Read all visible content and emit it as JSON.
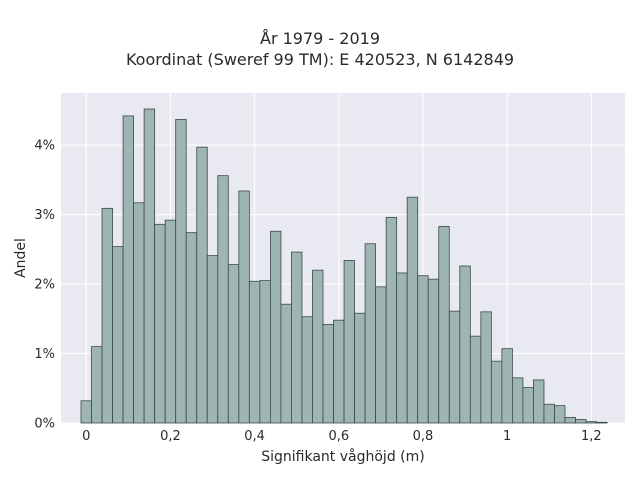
{
  "chart_data": {
    "type": "bar",
    "title_line1": "År 1979 - 2019",
    "title_line2": "Koordinat (Sweref 99 TM): E 420523, N 6142849",
    "xlabel": "Signifikant våghöjd (m)",
    "ylabel": "Andel",
    "xlim": [
      -0.06,
      1.28
    ],
    "ylim": [
      0,
      4.75
    ],
    "bin_width": 0.025,
    "bin_start": -0.0125,
    "x_ticks": [
      0,
      0.2,
      0.4,
      0.6,
      0.8,
      1,
      1.2
    ],
    "x_tick_labels": [
      "0",
      "0,2",
      "0,4",
      "0,6",
      "0,8",
      "1",
      "1,2"
    ],
    "y_ticks": [
      0,
      1,
      2,
      3,
      4
    ],
    "y_tick_labels": [
      "0%",
      "1%",
      "2%",
      "3%",
      "4%"
    ],
    "values": [
      0.32,
      1.1,
      3.09,
      2.54,
      4.42,
      3.17,
      4.52,
      2.86,
      2.92,
      4.37,
      2.74,
      3.97,
      2.41,
      3.56,
      2.28,
      3.34,
      2.04,
      2.05,
      2.76,
      1.71,
      2.46,
      1.53,
      2.2,
      1.42,
      1.48,
      2.34,
      1.58,
      2.58,
      1.96,
      2.96,
      2.16,
      3.25,
      2.12,
      2.07,
      2.83,
      1.61,
      2.26,
      1.25,
      1.6,
      0.89,
      1.07,
      0.65,
      0.51,
      0.62,
      0.27,
      0.25,
      0.08,
      0.05,
      0.02,
      0.01
    ],
    "grid": true,
    "colors": {
      "bar_fill": "#9eb5b4",
      "bar_stroke": "#3c4a4a",
      "plot_bg": "#e9e9f1",
      "grid": "#ffffff"
    }
  }
}
